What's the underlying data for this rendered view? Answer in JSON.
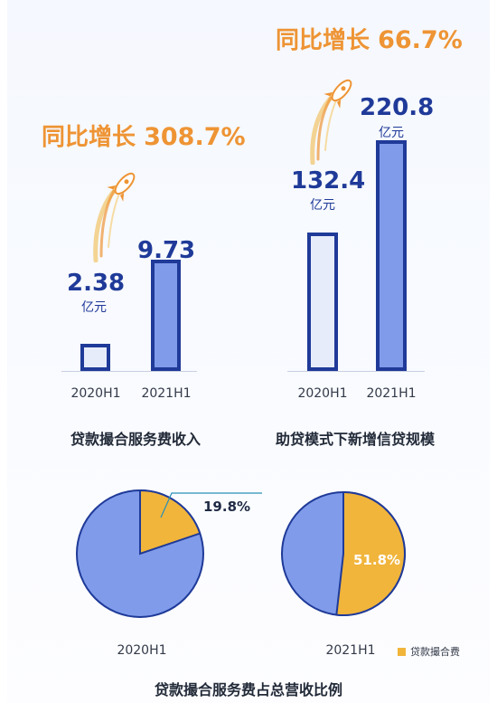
{
  "colors": {
    "growth": "#ee9434",
    "bar_border": "#1f3a98",
    "bar_2020": "#e7ecfb",
    "bar_2021": "#7f9bea",
    "pie_other": "#7f9bea",
    "pie_loan": "#f1b53b",
    "pie_border": "#1f3a98",
    "leader_line": "#2a8fb8"
  },
  "unit": "亿元",
  "chart_data": [
    {
      "type": "bar",
      "title": "贷款撮合服务费收入",
      "growth_label": "同比增长",
      "growth_value": "308.7%",
      "categories": [
        "2020H1",
        "2021H1"
      ],
      "values": [
        2.38,
        9.73
      ],
      "value_labels": [
        "2.38",
        "9.73"
      ],
      "unit": "亿元"
    },
    {
      "type": "bar",
      "title": "助贷模式下新增信贷规模",
      "growth_label": "同比增长",
      "growth_value": "66.7%",
      "categories": [
        "2020H1",
        "2021H1"
      ],
      "values": [
        132.4,
        220.8
      ],
      "value_labels": [
        "132.4",
        "220.8"
      ],
      "unit": "亿元"
    },
    {
      "type": "pie",
      "title": "贷款撮合服务费占总营收比例",
      "legend": "贷款撮合费",
      "pies": [
        {
          "label": "2020H1",
          "value": 19.8,
          "value_label": "19.8%"
        },
        {
          "label": "2021H1",
          "value": 51.8,
          "value_label": "51.8%"
        }
      ]
    }
  ]
}
